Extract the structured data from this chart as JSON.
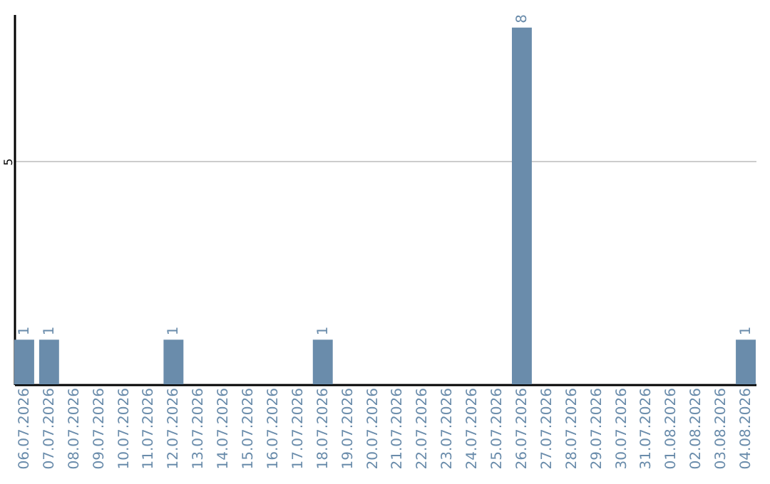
{
  "chart_data": {
    "type": "bar",
    "categories": [
      "06.07.2026",
      "07.07.2026",
      "08.07.2026",
      "09.07.2026",
      "10.07.2026",
      "11.07.2026",
      "12.07.2026",
      "13.07.2026",
      "14.07.2026",
      "15.07.2026",
      "16.07.2026",
      "17.07.2026",
      "18.07.2026",
      "19.07.2026",
      "20.07.2026",
      "21.07.2026",
      "22.07.2026",
      "23.07.2026",
      "24.07.2026",
      "25.07.2026",
      "26.07.2026",
      "27.07.2026",
      "28.07.2026",
      "29.07.2026",
      "30.07.2026",
      "31.07.2026",
      "01.08.2026",
      "02.08.2026",
      "03.08.2026",
      "04.08.2026"
    ],
    "values": [
      1,
      1,
      0,
      0,
      0,
      0,
      1,
      0,
      0,
      0,
      0,
      0,
      1,
      0,
      0,
      0,
      0,
      0,
      0,
      0,
      8,
      0,
      0,
      0,
      0,
      0,
      0,
      0,
      0,
      1
    ],
    "value_labels": [
      "1",
      "1",
      null,
      null,
      null,
      null,
      "1",
      null,
      null,
      null,
      null,
      null,
      "1",
      null,
      null,
      null,
      null,
      null,
      null,
      null,
      "8",
      null,
      null,
      null,
      null,
      null,
      null,
      null,
      null,
      "1"
    ],
    "color": "#6a8cab",
    "ylim": [
      0,
      8.3
    ],
    "yticks": [
      5
    ],
    "grid": "y"
  }
}
